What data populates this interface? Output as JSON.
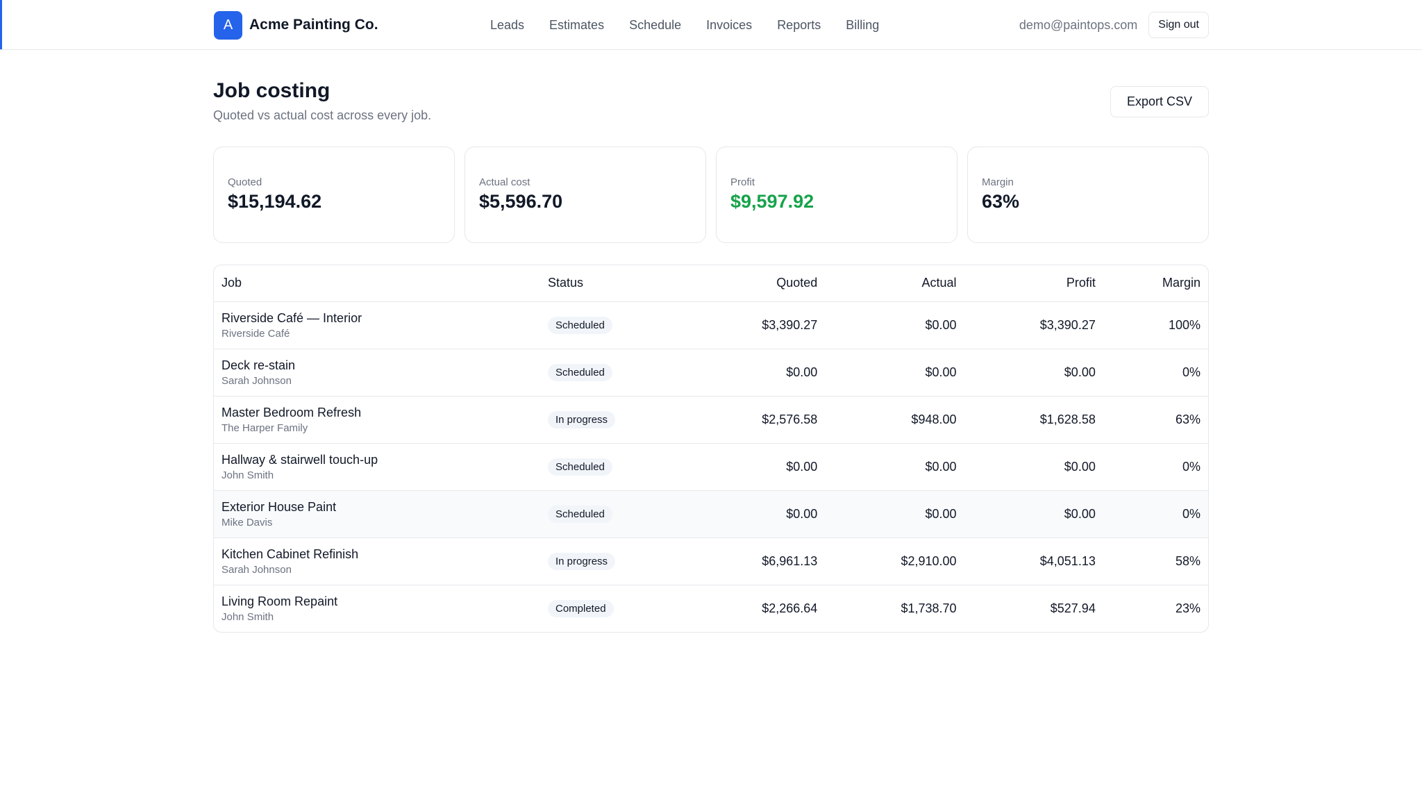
{
  "brand": {
    "logo_letter": "A",
    "name": "Acme Painting Co."
  },
  "nav": {
    "items": [
      "Leads",
      "Estimates",
      "Schedule",
      "Invoices",
      "Reports",
      "Billing"
    ]
  },
  "user": {
    "email": "demo@paintops.com",
    "signout_label": "Sign out"
  },
  "page": {
    "title": "Job costing",
    "subtitle": "Quoted vs actual cost across every job.",
    "export_label": "Export CSV"
  },
  "summary": {
    "quoted": {
      "label": "Quoted",
      "value": "$15,194.62"
    },
    "actual": {
      "label": "Actual cost",
      "value": "$5,596.70"
    },
    "profit": {
      "label": "Profit",
      "value": "$9,597.92"
    },
    "margin": {
      "label": "Margin",
      "value": "63%"
    }
  },
  "colors": {
    "accent": "#2563eb",
    "profit_green": "#16a34a"
  },
  "table": {
    "headers": {
      "job": "Job",
      "status": "Status",
      "quoted": "Quoted",
      "actual": "Actual",
      "profit": "Profit",
      "margin": "Margin"
    },
    "rows": [
      {
        "job": "Riverside Café — Interior",
        "client": "Riverside Café",
        "status": "Scheduled",
        "quoted": "$3,390.27",
        "actual": "$0.00",
        "profit": "$3,390.27",
        "margin": "100%"
      },
      {
        "job": "Deck re-stain",
        "client": "Sarah Johnson",
        "status": "Scheduled",
        "quoted": "$0.00",
        "actual": "$0.00",
        "profit": "$0.00",
        "margin": "0%"
      },
      {
        "job": "Master Bedroom Refresh",
        "client": "The Harper Family",
        "status": "In progress",
        "quoted": "$2,576.58",
        "actual": "$948.00",
        "profit": "$1,628.58",
        "margin": "63%"
      },
      {
        "job": "Hallway & stairwell touch-up",
        "client": "John Smith",
        "status": "Scheduled",
        "quoted": "$0.00",
        "actual": "$0.00",
        "profit": "$0.00",
        "margin": "0%"
      },
      {
        "job": "Exterior House Paint",
        "client": "Mike Davis",
        "status": "Scheduled",
        "quoted": "$0.00",
        "actual": "$0.00",
        "profit": "$0.00",
        "margin": "0%"
      },
      {
        "job": "Kitchen Cabinet Refinish",
        "client": "Sarah Johnson",
        "status": "In progress",
        "quoted": "$6,961.13",
        "actual": "$2,910.00",
        "profit": "$4,051.13",
        "margin": "58%"
      },
      {
        "job": "Living Room Repaint",
        "client": "John Smith",
        "status": "Completed",
        "quoted": "$2,266.64",
        "actual": "$1,738.70",
        "profit": "$527.94",
        "margin": "23%"
      }
    ]
  }
}
